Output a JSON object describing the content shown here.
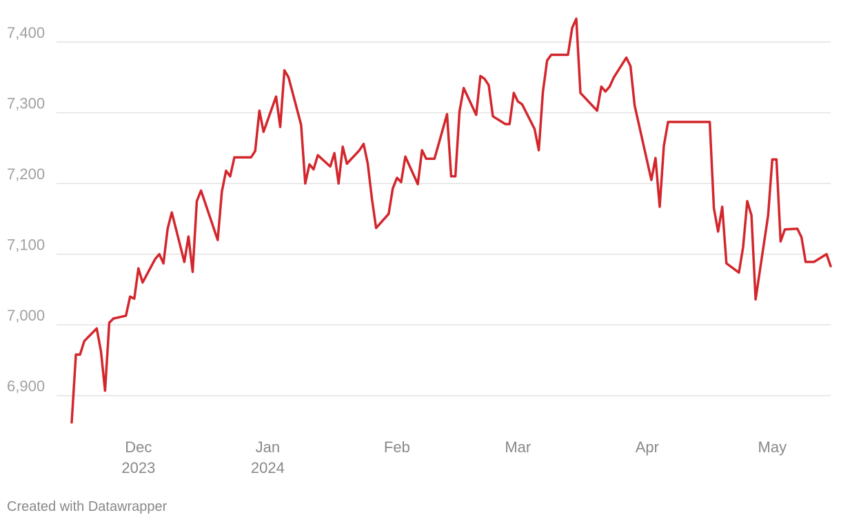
{
  "chart_data": {
    "type": "line",
    "title": "",
    "xlabel": "",
    "ylabel": "",
    "ylim": [
      6850,
      7440
    ],
    "xlim": [
      "2023-11-14",
      "2024-05-15"
    ],
    "grid": "horizontal",
    "legend": "none",
    "color": "#d3262c",
    "y_ticks": [
      {
        "value": 6900,
        "label": "6,900"
      },
      {
        "value": 7000,
        "label": "7,000"
      },
      {
        "value": 7100,
        "label": "7,100"
      },
      {
        "value": 7200,
        "label": "7,200"
      },
      {
        "value": 7300,
        "label": "7,300"
      },
      {
        "value": 7400,
        "label": "7,400"
      }
    ],
    "x_ticks": [
      {
        "date": "2023-12-01",
        "label": "Dec",
        "sublabel": "2023"
      },
      {
        "date": "2024-01-01",
        "label": "Jan",
        "sublabel": "2024"
      },
      {
        "date": "2024-02-01",
        "label": "Feb",
        "sublabel": ""
      },
      {
        "date": "2024-03-01",
        "label": "Mar",
        "sublabel": ""
      },
      {
        "date": "2024-04-01",
        "label": "Apr",
        "sublabel": ""
      },
      {
        "date": "2024-05-01",
        "label": "May",
        "sublabel": ""
      }
    ],
    "series": [
      {
        "points": [
          [
            "2023-11-15",
            6862
          ],
          [
            "2023-11-16",
            6958
          ],
          [
            "2023-11-17",
            6958
          ],
          [
            "2023-11-18",
            6977
          ],
          [
            "2023-11-21",
            6995
          ],
          [
            "2023-11-22",
            6963
          ],
          [
            "2023-11-23",
            6907
          ],
          [
            "2023-11-24",
            7003
          ],
          [
            "2023-11-25",
            7009
          ],
          [
            "2023-11-28",
            7013
          ],
          [
            "2023-11-29",
            7040
          ],
          [
            "2023-11-30",
            7037
          ],
          [
            "2023-12-01",
            7080
          ],
          [
            "2023-12-02",
            7060
          ],
          [
            "2023-12-05",
            7093
          ],
          [
            "2023-12-06",
            7100
          ],
          [
            "2023-12-07",
            7087
          ],
          [
            "2023-12-08",
            7136
          ],
          [
            "2023-12-09",
            7159
          ],
          [
            "2023-12-12",
            7089
          ],
          [
            "2023-12-13",
            7125
          ],
          [
            "2023-12-14",
            7075
          ],
          [
            "2023-12-15",
            7175
          ],
          [
            "2023-12-16",
            7190
          ],
          [
            "2023-12-20",
            7120
          ],
          [
            "2023-12-21",
            7188
          ],
          [
            "2023-12-22",
            7218
          ],
          [
            "2023-12-23",
            7210
          ],
          [
            "2023-12-24",
            7237
          ],
          [
            "2023-12-28",
            7237
          ],
          [
            "2023-12-29",
            7246
          ],
          [
            "2023-12-30",
            7303
          ],
          [
            "2023-12-31",
            7273
          ],
          [
            "2024-01-03",
            7323
          ],
          [
            "2024-01-04",
            7280
          ],
          [
            "2024-01-05",
            7360
          ],
          [
            "2024-01-06",
            7350
          ],
          [
            "2024-01-09",
            7283
          ],
          [
            "2024-01-10",
            7200
          ],
          [
            "2024-01-11",
            7227
          ],
          [
            "2024-01-12",
            7220
          ],
          [
            "2024-01-13",
            7240
          ],
          [
            "2024-01-16",
            7224
          ],
          [
            "2024-01-17",
            7243
          ],
          [
            "2024-01-18",
            7200
          ],
          [
            "2024-01-19",
            7252
          ],
          [
            "2024-01-20",
            7228
          ],
          [
            "2024-01-23",
            7247
          ],
          [
            "2024-01-24",
            7256
          ],
          [
            "2024-01-25",
            7228
          ],
          [
            "2024-01-26",
            7178
          ],
          [
            "2024-01-27",
            7137
          ],
          [
            "2024-01-30",
            7157
          ],
          [
            "2024-01-31",
            7193
          ],
          [
            "2024-02-01",
            7208
          ],
          [
            "2024-02-02",
            7202
          ],
          [
            "2024-02-03",
            7238
          ],
          [
            "2024-02-06",
            7199
          ],
          [
            "2024-02-07",
            7247
          ],
          [
            "2024-02-08",
            7235
          ],
          [
            "2024-02-10",
            7235
          ],
          [
            "2024-02-13",
            7298
          ],
          [
            "2024-02-14",
            7210
          ],
          [
            "2024-02-15",
            7210
          ],
          [
            "2024-02-16",
            7302
          ],
          [
            "2024-02-17",
            7335
          ],
          [
            "2024-02-20",
            7297
          ],
          [
            "2024-02-21",
            7352
          ],
          [
            "2024-02-22",
            7348
          ],
          [
            "2024-02-23",
            7339
          ],
          [
            "2024-02-24",
            7295
          ],
          [
            "2024-02-27",
            7284
          ],
          [
            "2024-02-28",
            7284
          ],
          [
            "2024-02-29",
            7328
          ],
          [
            "2024-03-01",
            7316
          ],
          [
            "2024-03-02",
            7312
          ],
          [
            "2024-03-05",
            7277
          ],
          [
            "2024-03-06",
            7247
          ],
          [
            "2024-03-07",
            7330
          ],
          [
            "2024-03-08",
            7374
          ],
          [
            "2024-03-09",
            7382
          ],
          [
            "2024-03-13",
            7382
          ],
          [
            "2024-03-14",
            7420
          ],
          [
            "2024-03-15",
            7433
          ],
          [
            "2024-03-16",
            7328
          ],
          [
            "2024-03-20",
            7303
          ],
          [
            "2024-03-21",
            7337
          ],
          [
            "2024-03-22",
            7330
          ],
          [
            "2024-03-23",
            7337
          ],
          [
            "2024-03-24",
            7350
          ],
          [
            "2024-03-27",
            7378
          ],
          [
            "2024-03-28",
            7366
          ],
          [
            "2024-03-29",
            7310
          ],
          [
            "2024-04-02",
            7205
          ],
          [
            "2024-04-03",
            7236
          ],
          [
            "2024-04-04",
            7167
          ],
          [
            "2024-04-05",
            7253
          ],
          [
            "2024-04-06",
            7287
          ],
          [
            "2024-04-16",
            7287
          ],
          [
            "2024-04-17",
            7165
          ],
          [
            "2024-04-18",
            7132
          ],
          [
            "2024-04-19",
            7167
          ],
          [
            "2024-04-20",
            7087
          ],
          [
            "2024-04-23",
            7074
          ],
          [
            "2024-04-24",
            7110
          ],
          [
            "2024-04-25",
            7175
          ],
          [
            "2024-04-26",
            7155
          ],
          [
            "2024-04-27",
            7036
          ],
          [
            "2024-04-30",
            7155
          ],
          [
            "2024-05-01",
            7234
          ],
          [
            "2024-05-02",
            7234
          ],
          [
            "2024-05-03",
            7118
          ],
          [
            "2024-05-04",
            7135
          ],
          [
            "2024-05-07",
            7136
          ],
          [
            "2024-05-08",
            7124
          ],
          [
            "2024-05-09",
            7089
          ],
          [
            "2024-05-11",
            7089
          ],
          [
            "2024-05-14",
            7100
          ],
          [
            "2024-05-15",
            7083
          ]
        ]
      }
    ]
  },
  "footer": {
    "credit": "Created with Datawrapper"
  }
}
